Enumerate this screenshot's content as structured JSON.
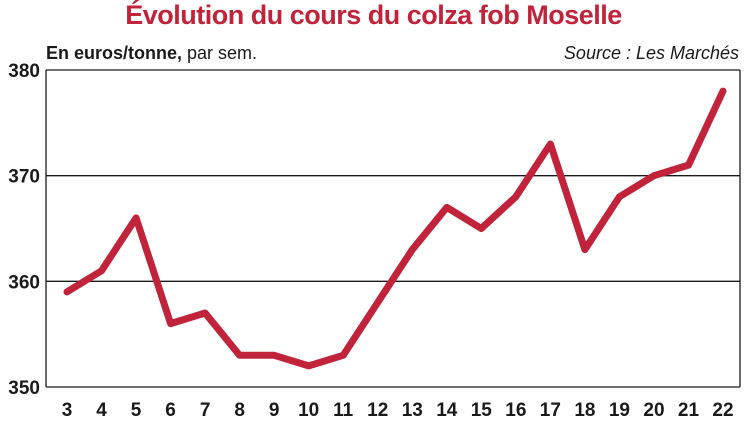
{
  "header": {
    "title": "Évolution du cours du colza fob Moselle",
    "unit_bold": "En euros/tonne,",
    "unit_rest": " par sem.",
    "source": "Source : Les Marchés"
  },
  "colors": {
    "title": "#c0233a",
    "line": "#c0233a",
    "grid": "#1a1a1a"
  },
  "chart_data": {
    "type": "line",
    "title": "Évolution du cours du colza fob Moselle",
    "ylabel": "En euros/tonne, par sem.",
    "xlabel": "",
    "x": [
      3,
      4,
      5,
      6,
      7,
      8,
      9,
      10,
      11,
      12,
      13,
      14,
      15,
      16,
      17,
      18,
      19,
      20,
      21,
      22
    ],
    "series": [
      {
        "values": [
          359,
          361,
          366,
          356,
          357,
          353,
          353,
          352,
          353,
          358,
          363,
          367,
          365,
          368,
          373,
          363,
          368,
          370,
          371,
          378
        ]
      }
    ],
    "ylim": [
      350,
      380
    ],
    "yticks": [
      350,
      360,
      370,
      380
    ],
    "grid": "horizontal",
    "legend": "none"
  }
}
